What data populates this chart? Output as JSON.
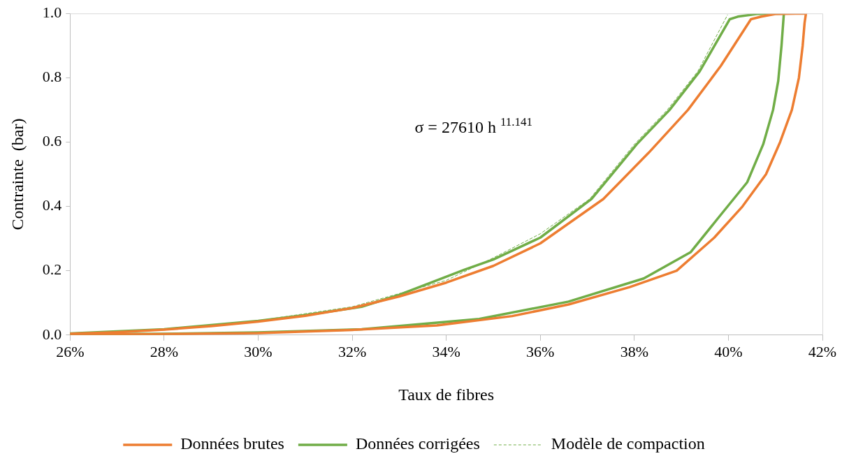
{
  "chart_data": {
    "type": "line",
    "xlabel": "Taux de fibres",
    "ylabel": "Contrainte  (bar)",
    "xlim": [
      26,
      42
    ],
    "xticks": [
      {
        "value": 26,
        "label": "26%"
      },
      {
        "value": 28,
        "label": "28%"
      },
      {
        "value": 30,
        "label": "30%"
      },
      {
        "value": 32,
        "label": "32%"
      },
      {
        "value": 34,
        "label": "34%"
      },
      {
        "value": 36,
        "label": "36%"
      },
      {
        "value": 38,
        "label": "38%"
      },
      {
        "value": 40,
        "label": "40%"
      },
      {
        "value": 42,
        "label": "42%"
      }
    ],
    "ylim": [
      0,
      1
    ],
    "yticks": [
      {
        "value": 0,
        "label": "0.0"
      },
      {
        "value": 0.2,
        "label": "0.2"
      },
      {
        "value": 0.4,
        "label": "0.4"
      },
      {
        "value": 0.6,
        "label": "0.6"
      },
      {
        "value": 0.8,
        "label": "0.8"
      },
      {
        "value": 1,
        "label": "1.0"
      }
    ],
    "grid": false,
    "legend": "bottom",
    "marker": "none",
    "annotations": [
      "σ = 27610 h $^{11.141}$"
    ],
    "series": [
      {
        "name": "Données brutes",
        "color": "#ed7d31",
        "line_style": "solid",
        "x": [
          26,
          28,
          30,
          32,
          33.8,
          35.4,
          36.6,
          37.9,
          38.9,
          39.7,
          40.3,
          40.8,
          41.1,
          41.35,
          41.5,
          41.58,
          41.62,
          41.65,
          41.0,
          40.7,
          40.48,
          39.84,
          39.14,
          38.3,
          37.34,
          36.0,
          35.0,
          34.0,
          33.0,
          32.0,
          31.0,
          30.0,
          29.0,
          28.0,
          27.0,
          26.0
        ],
        "values": [
          0.002,
          0.003,
          0.006,
          0.016,
          0.03,
          0.059,
          0.095,
          0.149,
          0.2,
          0.303,
          0.4,
          0.5,
          0.6,
          0.7,
          0.8,
          0.9,
          0.97,
          1.0,
          0.998,
          0.99,
          0.982,
          0.837,
          0.7,
          0.566,
          0.423,
          0.285,
          0.215,
          0.163,
          0.12,
          0.084,
          0.06,
          0.042,
          0.028,
          0.017,
          0.009,
          0.004
        ]
      },
      {
        "name": "Données corrigées",
        "color": "#70ad47",
        "line_style": "solid",
        "x": [
          26,
          28,
          30,
          32.2,
          34.7,
          36.6,
          38.2,
          39.2,
          39.8,
          40.4,
          40.74,
          40.95,
          41.06,
          41.13,
          41.18,
          40.6,
          40.2,
          40.03,
          39.39,
          38.75,
          38.05,
          37.09,
          36.0,
          35.0,
          34.4,
          33.0,
          32.2,
          31.0,
          30.0,
          28.0,
          26.0
        ],
        "values": [
          0.003,
          0.004,
          0.008,
          0.018,
          0.05,
          0.104,
          0.176,
          0.258,
          0.367,
          0.475,
          0.593,
          0.7,
          0.79,
          0.9,
          1.0,
          0.998,
          0.99,
          0.982,
          0.82,
          0.7,
          0.593,
          0.423,
          0.303,
          0.235,
          0.204,
          0.125,
          0.088,
          0.062,
          0.044,
          0.018,
          0.005
        ]
      },
      {
        "name": "Modèle de compaction",
        "color": "#70ad47",
        "line_style": "dashed",
        "x": [
          26,
          28,
          30,
          32,
          34,
          35,
          36,
          37.05,
          38.0,
          38.7,
          39.35,
          39.98
        ],
        "values": [
          0.005,
          0.018,
          0.045,
          0.088,
          0.17,
          0.24,
          0.315,
          0.423,
          0.593,
          0.7,
          0.82,
          0.995
        ]
      }
    ]
  }
}
